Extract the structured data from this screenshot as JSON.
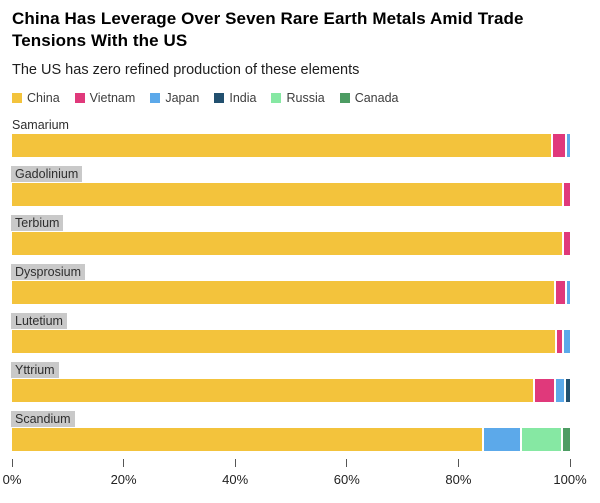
{
  "header": {
    "title": "China Has Leverage Over Seven Rare Earth Metals Amid Trade Tensions With the US",
    "subtitle": "The US has zero refined production of these elements"
  },
  "colors": {
    "China": "#F3C33C",
    "Vietnam": "#E0397B",
    "Japan": "#5CA9EA",
    "India": "#22506F",
    "Russia": "#86E8A3",
    "Canada": "#4D9C63"
  },
  "legend": [
    {
      "label": "China"
    },
    {
      "label": "Vietnam"
    },
    {
      "label": "Japan"
    },
    {
      "label": "India"
    },
    {
      "label": "Russia"
    },
    {
      "label": "Canada"
    }
  ],
  "chart_data": {
    "type": "bar",
    "orientation": "horizontal-stacked",
    "title": "China Has Leverage Over Seven Rare Earth Metals Amid Trade Tensions With the US",
    "subtitle": "The US has zero refined production of these elements",
    "unit": "% of global refined production",
    "legend_position": "top",
    "grid": false,
    "categories": [
      "Samarium",
      "Gadolinium",
      "Terbium",
      "Dysprosium",
      "Lutetium",
      "Yttrium",
      "Scandium"
    ],
    "series_names": [
      "China",
      "Vietnam",
      "Japan",
      "India",
      "Russia",
      "Canada"
    ],
    "rows": [
      {
        "label": "Samarium",
        "label_highlighted": false,
        "segments": [
          {
            "name": "China",
            "value": 97.3
          },
          {
            "name": "Vietnam",
            "value": 2.1
          },
          {
            "name": "Japan",
            "value": 0.6
          }
        ]
      },
      {
        "label": "Gadolinium",
        "label_highlighted": true,
        "segments": [
          {
            "name": "China",
            "value": 98.9
          },
          {
            "name": "Vietnam",
            "value": 1.1
          }
        ]
      },
      {
        "label": "Terbium",
        "label_highlighted": true,
        "segments": [
          {
            "name": "China",
            "value": 98.9
          },
          {
            "name": "Vietnam",
            "value": 1.1
          }
        ]
      },
      {
        "label": "Dysprosium",
        "label_highlighted": true,
        "segments": [
          {
            "name": "China",
            "value": 97.8
          },
          {
            "name": "Vietnam",
            "value": 1.6
          },
          {
            "name": "Japan",
            "value": 0.6
          }
        ]
      },
      {
        "label": "Lutetium",
        "label_highlighted": true,
        "segments": [
          {
            "name": "China",
            "value": 98.1
          },
          {
            "name": "Vietnam",
            "value": 0.9
          },
          {
            "name": "Japan",
            "value": 1.0
          }
        ]
      },
      {
        "label": "Yttrium",
        "label_highlighted": true,
        "segments": [
          {
            "name": "China",
            "value": 94.3
          },
          {
            "name": "Vietnam",
            "value": 3.6
          },
          {
            "name": "Japan",
            "value": 1.3
          },
          {
            "name": "India",
            "value": 0.8
          }
        ]
      },
      {
        "label": "Scandium",
        "label_highlighted": true,
        "segments": [
          {
            "name": "China",
            "value": 85.2
          },
          {
            "name": "Japan",
            "value": 6.5
          },
          {
            "name": "Russia",
            "value": 7.1
          },
          {
            "name": "Canada",
            "value": 1.2
          }
        ]
      }
    ],
    "x_axis": {
      "min": 0,
      "max": 100,
      "ticks": [
        {
          "label": "0%",
          "value": 0
        },
        {
          "label": "20%",
          "value": 20
        },
        {
          "label": "40%",
          "value": 40
        },
        {
          "label": "60%",
          "value": 60
        },
        {
          "label": "80%",
          "value": 80
        },
        {
          "label": "100%",
          "value": 100
        }
      ]
    }
  }
}
